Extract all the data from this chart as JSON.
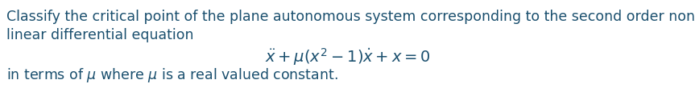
{
  "line1": "Classify the critical point of the plane autonomous system corresponding to the second order non-",
  "line2": "linear differential equation",
  "equation": "$\\ddot{x} + \\mu(x^2 - 1)\\dot{x} + x = 0$",
  "line3": "in terms of $\\mu$ where $\\mu$ is a real valued constant.",
  "text_color": "#1a4f6e",
  "font_size": 12.5,
  "eq_font_size": 14,
  "background_color": "#ffffff",
  "fig_width": 8.63,
  "fig_height": 1.2,
  "dpi": 100
}
